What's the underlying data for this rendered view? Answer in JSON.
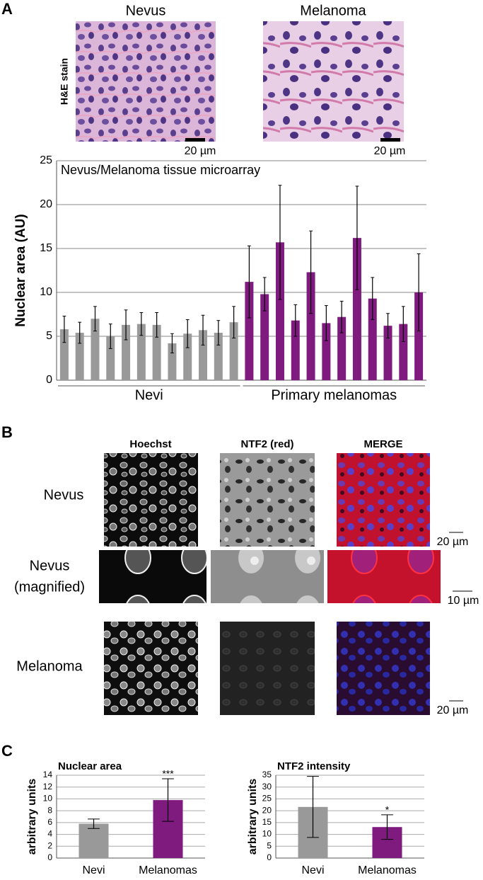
{
  "panel_a": {
    "label": "A",
    "stain": "H&E stain",
    "images": [
      {
        "title": "Nevus",
        "scale": "20 µm"
      },
      {
        "title": "Melanoma",
        "scale": "20 µm"
      }
    ]
  },
  "panel_b": {
    "label": "B",
    "columns": [
      "Hoechst",
      "NTF2 (red)",
      "MERGE"
    ],
    "rows": [
      {
        "label_lines": [
          "Nevus"
        ],
        "scale": "20 µm"
      },
      {
        "label_lines": [
          "Nevus",
          "(magnified)"
        ],
        "scale": "10 µm"
      },
      {
        "label_lines": [
          "Melanoma"
        ],
        "scale": "20 µm"
      }
    ]
  },
  "panel_c": {
    "label": "C"
  },
  "chart_data": [
    {
      "type": "bar",
      "title": "Nevus/Melanoma tissue microarray",
      "ylabel": "Nuclear area (AU)",
      "categories": [
        null,
        null,
        null,
        null,
        null,
        null,
        null,
        null,
        null,
        null,
        null,
        null,
        null,
        null,
        null,
        null,
        null,
        null,
        null,
        null,
        null,
        null,
        null,
        null
      ],
      "series": [
        {
          "name": "Nevi",
          "color": "#999999",
          "values": [
            5.8,
            5.4,
            7.0,
            5.0,
            6.3,
            6.4,
            6.3,
            4.2,
            5.3,
            5.7,
            5.4,
            6.6,
            null,
            null,
            null,
            null,
            null,
            null,
            null,
            null,
            null,
            null,
            null,
            null
          ],
          "errors": [
            1.5,
            1.2,
            1.4,
            1.4,
            1.7,
            1.3,
            1.4,
            1.1,
            1.6,
            1.7,
            1.4,
            1.8,
            null,
            null,
            null,
            null,
            null,
            null,
            null,
            null,
            null,
            null,
            null,
            null
          ]
        },
        {
          "name": "Primary melanomas",
          "color": "#7f1a7f",
          "values": [
            null,
            null,
            null,
            null,
            null,
            null,
            null,
            null,
            null,
            null,
            null,
            null,
            11.2,
            9.8,
            15.7,
            6.8,
            12.3,
            6.5,
            7.2,
            16.2,
            9.3,
            6.2,
            6.4,
            10.0
          ],
          "errors": [
            null,
            null,
            null,
            null,
            null,
            null,
            null,
            null,
            null,
            null,
            null,
            null,
            4.1,
            1.9,
            6.5,
            1.8,
            4.7,
            2.0,
            1.8,
            5.9,
            2.4,
            1.4,
            2.0,
            4.4
          ]
        }
      ],
      "ylim": [
        0,
        25
      ],
      "yticks": [
        0,
        5,
        10,
        15,
        20,
        25
      ],
      "grid": true
    },
    {
      "type": "bar",
      "title": "Nuclear area",
      "ylabel": "arbitrary units",
      "categories": [
        "Nevi",
        "Melanomas"
      ],
      "values": [
        5.8,
        9.8
      ],
      "errors": [
        0.8,
        3.6
      ],
      "colors": [
        "#999999",
        "#7f1a7f"
      ],
      "annotations": [
        null,
        "***"
      ],
      "ylim": [
        0,
        14
      ],
      "yticks": [
        0,
        2,
        4,
        6,
        8,
        10,
        12,
        14
      ],
      "grid": true
    },
    {
      "type": "bar",
      "title": "NTF2 intensity",
      "ylabel": "arbitrary units",
      "categories": [
        "Nevi",
        "Melanomas"
      ],
      "values": [
        21.6,
        13.1
      ],
      "errors": [
        12.9,
        5.2
      ],
      "colors": [
        "#999999",
        "#7f1a7f"
      ],
      "annotations": [
        null,
        "*"
      ],
      "ylim": [
        0,
        35
      ],
      "yticks": [
        0,
        5,
        10,
        15,
        20,
        25,
        30,
        35
      ],
      "grid": true
    }
  ]
}
